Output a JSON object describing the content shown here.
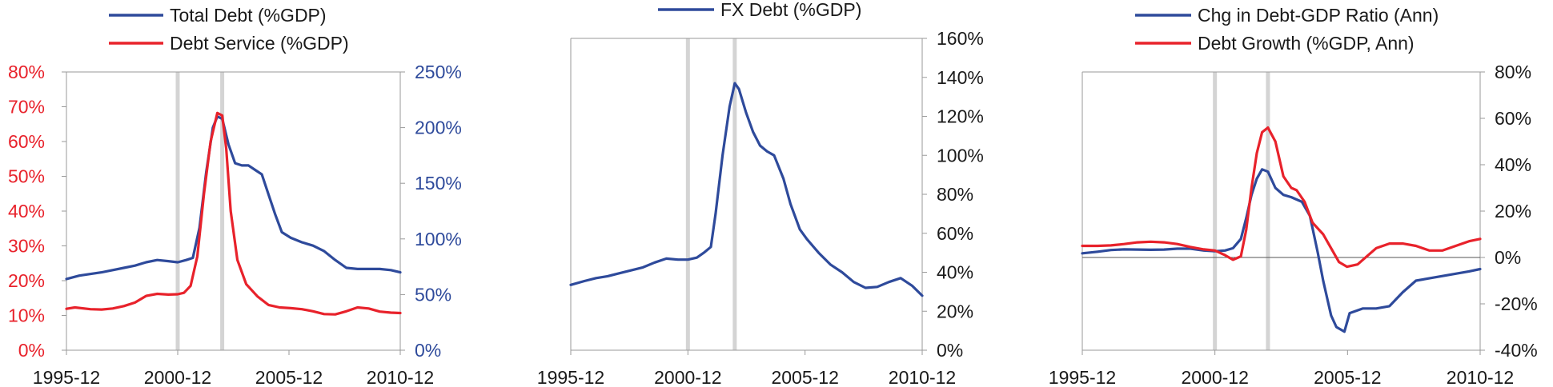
{
  "colors": {
    "blue": "#2e4a9b",
    "red": "#e8222b",
    "axis": "#9a9a9a",
    "shade": "#d4d4d4",
    "text": "#1a1a1a"
  },
  "chart_data": [
    {
      "type": "line",
      "x_ticks": [
        "1995-12",
        "2000-12",
        "2005-12",
        "2010-12"
      ],
      "x_range": [
        1995.92,
        2010.92
      ],
      "shaded_dates": [
        2000.92,
        2002.92
      ],
      "y_left": {
        "range": [
          0,
          80
        ],
        "ticks": [
          "0%",
          "10%",
          "20%",
          "30%",
          "40%",
          "50%",
          "60%",
          "70%",
          "80%"
        ],
        "color": "#e8222b"
      },
      "y_right": {
        "range": [
          0,
          250
        ],
        "ticks": [
          "0%",
          "50%",
          "100%",
          "150%",
          "200%",
          "250%"
        ],
        "color": "#2e4a9b"
      },
      "legend": "top-left",
      "series": [
        {
          "name": "Total Debt (%GDP)",
          "color": "#2e4a9b",
          "axis": "right",
          "x": [
            1995.92,
            1996.5,
            1997.5,
            1998.5,
            1999.0,
            1999.5,
            2000.0,
            2000.5,
            2000.92,
            2001.3,
            2001.6,
            2001.9,
            2002.2,
            2002.5,
            2002.7,
            2002.92,
            2003.2,
            2003.5,
            2003.8,
            2004.1,
            2004.4,
            2004.7,
            2005.0,
            2005.3,
            2005.6,
            2006.0,
            2006.5,
            2007.0,
            2007.5,
            2008.0,
            2008.5,
            2009.0,
            2009.5,
            2010.0,
            2010.5,
            2010.92
          ],
          "y": [
            64,
            67,
            70,
            74,
            76,
            79,
            81,
            80,
            79,
            81,
            83,
            110,
            160,
            200,
            210,
            208,
            185,
            168,
            166,
            166,
            162,
            158,
            140,
            122,
            106,
            101,
            97,
            94,
            89,
            81,
            74,
            73,
            73,
            73,
            72,
            70
          ]
        },
        {
          "name": "Debt Service (%GDP)",
          "color": "#e8222b",
          "axis": "left",
          "x": [
            1995.92,
            1996.3,
            1997.0,
            1997.5,
            1998.0,
            1998.5,
            1999.0,
            1999.5,
            2000.0,
            2000.5,
            2000.92,
            2001.2,
            2001.5,
            2001.8,
            2002.1,
            2002.4,
            2002.7,
            2002.92,
            2003.1,
            2003.3,
            2003.6,
            2004.0,
            2004.5,
            2005.0,
            2005.5,
            2006.0,
            2006.5,
            2007.0,
            2007.5,
            2008.0,
            2008.5,
            2009.0,
            2009.5,
            2010.0,
            2010.5,
            2010.92
          ],
          "y": [
            11.9,
            12.3,
            11.8,
            11.7,
            12.0,
            12.7,
            13.7,
            15.6,
            16.2,
            16.0,
            16.1,
            16.5,
            18.5,
            27.0,
            45.0,
            60.0,
            68.2,
            67.5,
            58.0,
            40.0,
            26.0,
            19.0,
            15.5,
            13.0,
            12.3,
            12.1,
            11.8,
            11.2,
            10.4,
            10.3,
            11.2,
            12.3,
            12.0,
            11.1,
            10.8,
            10.7
          ]
        }
      ]
    },
    {
      "type": "line",
      "x_ticks": [
        "1995-12",
        "2000-12",
        "2005-12",
        "2010-12"
      ],
      "x_range": [
        1995.92,
        2010.92
      ],
      "shaded_dates": [
        2000.92,
        2002.92
      ],
      "y_right": {
        "range": [
          0,
          160
        ],
        "ticks": [
          "0%",
          "20%",
          "40%",
          "60%",
          "80%",
          "100%",
          "120%",
          "140%",
          "160%"
        ],
        "color": "#1a1a1a"
      },
      "legend": "top-center",
      "series": [
        {
          "name": "FX Debt (%GDP)",
          "color": "#2e4a9b",
          "axis": "right",
          "x": [
            1995.92,
            1996.5,
            1997.0,
            1997.5,
            1998.0,
            1998.5,
            1999.0,
            1999.5,
            2000.0,
            2000.5,
            2000.92,
            2001.3,
            2001.6,
            2001.9,
            2002.1,
            2002.4,
            2002.7,
            2002.92,
            2003.1,
            2003.4,
            2003.7,
            2004.0,
            2004.3,
            2004.6,
            2005.0,
            2005.3,
            2005.7,
            2006.0,
            2006.5,
            2007.0,
            2007.5,
            2008.0,
            2008.5,
            2009.0,
            2009.5,
            2010.0,
            2010.5,
            2010.92
          ],
          "y": [
            33.5,
            35.5,
            37,
            38,
            39.5,
            41,
            42.5,
            45,
            47,
            46.5,
            46.5,
            47.5,
            50,
            53,
            70,
            100,
            125,
            137,
            134,
            122,
            112,
            105,
            102,
            100,
            88,
            75,
            62,
            57,
            50,
            44,
            40,
            35,
            32,
            32.5,
            35,
            37,
            33,
            28
          ]
        }
      ]
    },
    {
      "type": "line",
      "x_ticks": [
        "1995-12",
        "2000-12",
        "2005-12",
        "2010-12"
      ],
      "x_range": [
        1995.92,
        2010.92
      ],
      "shaded_dates": [
        2000.92,
        2002.92
      ],
      "zero_line": true,
      "y_right": {
        "range": [
          -40,
          80
        ],
        "ticks": [
          "-40%",
          "-20%",
          "0%",
          "20%",
          "40%",
          "60%",
          "80%"
        ],
        "color": "#1a1a1a"
      },
      "legend": "top-center",
      "series": [
        {
          "name": "Chg in Debt-GDP Ratio (Ann)",
          "color": "#2e4a9b",
          "axis": "right",
          "x": [
            1995.92,
            1996.5,
            1997.0,
            1997.5,
            1998.0,
            1998.5,
            1999.0,
            1999.5,
            2000.0,
            2000.5,
            2000.92,
            2001.3,
            2001.6,
            2001.9,
            2002.1,
            2002.3,
            2002.5,
            2002.7,
            2002.92,
            2003.2,
            2003.5,
            2003.8,
            2004.2,
            2004.5,
            2004.8,
            2005.0,
            2005.3,
            2005.5,
            2005.8,
            2006.0,
            2006.5,
            2007.0,
            2007.5,
            2008.0,
            2008.5,
            2009.0,
            2009.5,
            2010.0,
            2010.5,
            2010.92
          ],
          "y": [
            1.8,
            2.5,
            3.2,
            3.5,
            3.4,
            3.3,
            3.4,
            3.8,
            3.8,
            3.0,
            2.7,
            3.0,
            4.0,
            8.0,
            17.0,
            27.0,
            34.0,
            38.0,
            37.0,
            30.0,
            27.0,
            26.0,
            24.0,
            18.0,
            2.0,
            -10.0,
            -25.0,
            -30.0,
            -32.0,
            -24.0,
            -22.0,
            -22.0,
            -21.0,
            -15.0,
            -10.0,
            -9.0,
            -8.0,
            -7.0,
            -6.0,
            -5.0
          ]
        },
        {
          "name": "Debt Growth (%GDP, Ann)",
          "color": "#e8222b",
          "axis": "right",
          "x": [
            1995.92,
            1996.5,
            1997.0,
            1997.5,
            1998.0,
            1998.5,
            1999.0,
            1999.5,
            2000.0,
            2000.5,
            2000.92,
            2001.3,
            2001.6,
            2001.9,
            2002.1,
            2002.3,
            2002.5,
            2002.7,
            2002.92,
            2003.2,
            2003.5,
            2003.8,
            2004.0,
            2004.3,
            2004.6,
            2005.0,
            2005.3,
            2005.6,
            2005.9,
            2006.3,
            2006.7,
            2007.0,
            2007.5,
            2008.0,
            2008.5,
            2009.0,
            2009.5,
            2010.0,
            2010.5,
            2010.92
          ],
          "y": [
            5,
            5,
            5.2,
            5.8,
            6.5,
            6.8,
            6.5,
            5.8,
            4.5,
            3.5,
            3,
            1,
            -1,
            0.5,
            12,
            30,
            45,
            54,
            56,
            50,
            35,
            30,
            29,
            24,
            15,
            10,
            4,
            -2,
            -4,
            -3,
            1,
            4,
            6,
            6,
            5,
            3,
            3,
            5,
            7,
            8
          ]
        }
      ]
    }
  ]
}
